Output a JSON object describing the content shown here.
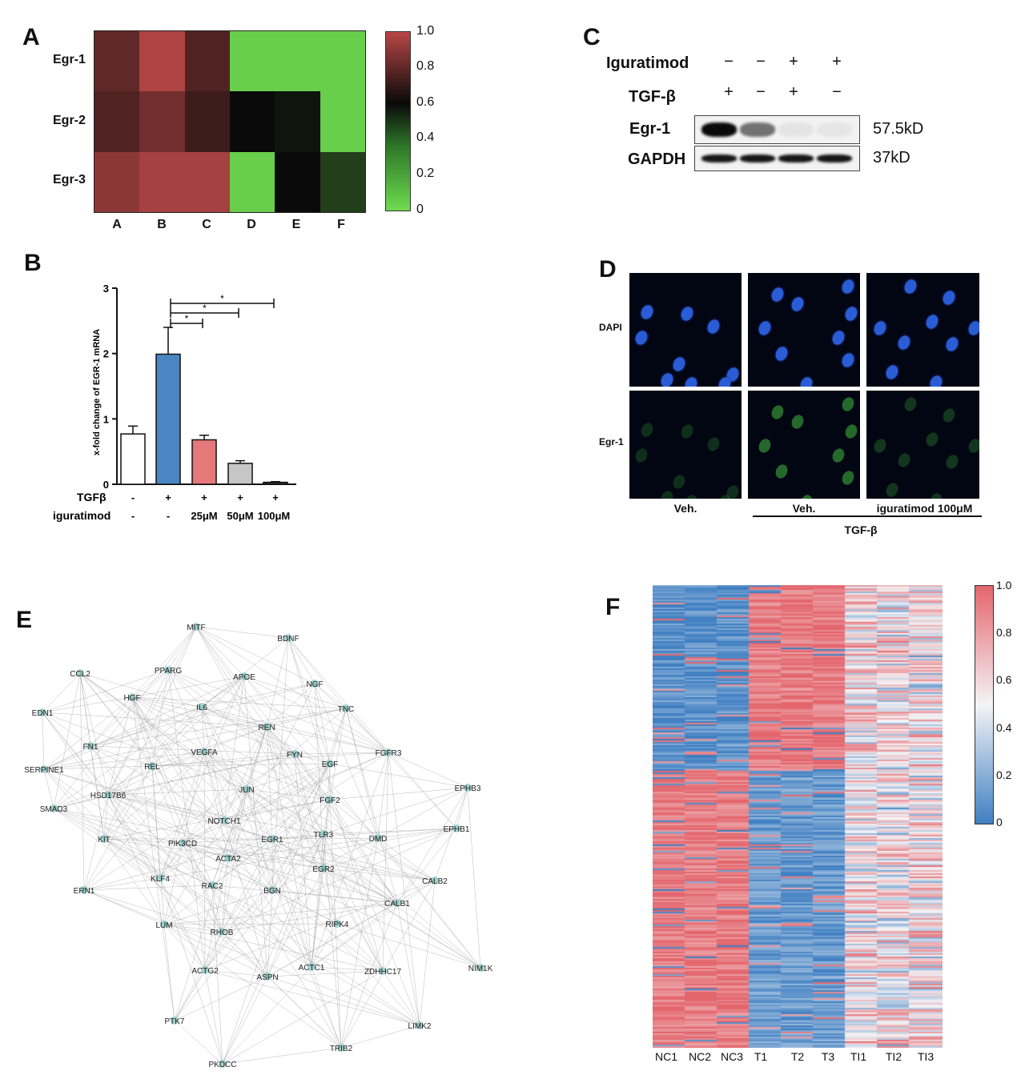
{
  "panels": {
    "A": "A",
    "B": "B",
    "C": "C",
    "D": "D",
    "E": "E",
    "F": "F"
  },
  "panel_a": {
    "rows": [
      "Egr-1",
      "Egr-2",
      "Egr-3"
    ],
    "columns": [
      "A",
      "B",
      "C",
      "D",
      "E",
      "F"
    ],
    "colorbar_ticks": [
      "1.0",
      "0.8",
      "0.6",
      "0.4",
      "0.2",
      "0"
    ],
    "colors": {
      "high": "#b84646",
      "mid": "#0a0a0a",
      "low": "#6fdb4f"
    }
  },
  "panel_c": {
    "treatments": [
      {
        "label": "Iguratimod",
        "signs": [
          "−",
          "−",
          "+",
          "+"
        ]
      },
      {
        "label": "TGF-β",
        "signs": [
          "+",
          "−",
          "+",
          "−"
        ]
      }
    ],
    "blots": [
      {
        "label": "Egr-1",
        "size": "57.5kD",
        "intensity": [
          1.0,
          0.55,
          0.06,
          0.05
        ]
      },
      {
        "label": "GAPDH",
        "size": "37kD",
        "intensity": [
          0.95,
          0.95,
          0.95,
          0.95
        ]
      }
    ]
  },
  "panel_d": {
    "row_labels": [
      "DAPI",
      "Egr-1"
    ],
    "captions": [
      "Veh.",
      "Veh.",
      "iguratimod 100μM"
    ],
    "group_label": "TGF-β"
  },
  "panel_e": {
    "nodes": [
      "MITF",
      "BDNF",
      "CCL2",
      "PPARG",
      "APOE",
      "NGF",
      "EDN1",
      "HGF",
      "IL6",
      "TNC",
      "REN",
      "FN1",
      "VEGFA",
      "FYN",
      "FGFR3",
      "SERPINE1",
      "REL",
      "EGF",
      "HSD17B6",
      "JUN",
      "EPHB3",
      "SMAD3",
      "FGF2",
      "NOTCH1",
      "EPHB1",
      "KIT",
      "PIK3CD",
      "EGR1",
      "TLR3",
      "DMD",
      "ACTA2",
      "EGR2",
      "KLF4",
      "RAC2",
      "BGN",
      "CALB2",
      "ERN1",
      "CALB1",
      "LUM",
      "RHOB",
      "RIPK4",
      "ACTG2",
      "ACTC1",
      "ZDHHC17",
      "NIM1K",
      "ASPN",
      "PTK7",
      "LIMK2",
      "TRIB2",
      "PKDCC"
    ]
  },
  "panel_f": {
    "colorbar_ticks": [
      "1.0",
      "0.8",
      "0.6",
      "0.4",
      "0.2",
      "0"
    ],
    "columns": [
      "NC1",
      "NC2",
      "NC3",
      "T1",
      "T2",
      "T3",
      "TI1",
      "TI2",
      "TI3"
    ],
    "colors": {
      "high": "#e4666d",
      "mid": "#f4f4f6",
      "low": "#3f7fc2"
    }
  },
  "chart_data": {
    "type": "bar",
    "categories": [
      "1",
      "2",
      "3",
      "4",
      "5"
    ],
    "values": [
      0.77,
      1.99,
      0.68,
      0.32,
      0.03
    ],
    "errors": [
      0.12,
      0.41,
      0.07,
      0.04,
      0.01
    ],
    "colors": [
      "#ffffff",
      "#4a86c2",
      "#e57878",
      "#c6c6c6",
      "#333333"
    ],
    "ylabel": "x-fold change of EGR-1 mRNA",
    "ylim": [
      0,
      3
    ],
    "yticks": [
      "0",
      "1",
      "2",
      "3"
    ],
    "row_labels": [
      "TGFβ",
      "iguratimod"
    ],
    "tgf_signs": [
      "-",
      "+",
      "+",
      "+",
      "+"
    ],
    "iguratimod_signs": [
      "-",
      "-",
      "25μM",
      "50μM",
      "100μM"
    ],
    "significance": [
      "*",
      "*",
      "*"
    ]
  }
}
